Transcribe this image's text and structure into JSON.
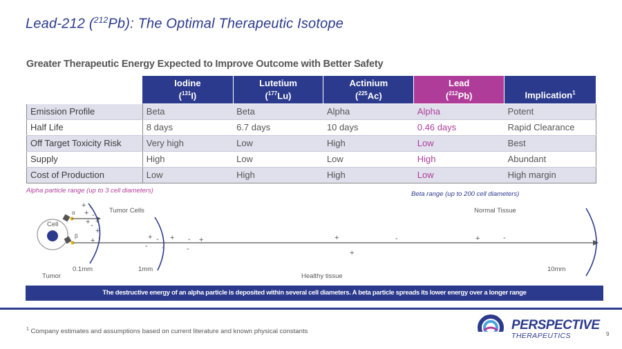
{
  "title": {
    "prefix": "Lead-212 (",
    "sup": "212",
    "suffix": "Pb): The Optimal Therapeutic Isotope"
  },
  "subtitle": "Greater Therapeutic Energy Expected to Improve Outcome with Better Safety",
  "table": {
    "headers": [
      {
        "name": "Iodine",
        "sym_pre": "(",
        "sup": "131",
        "sym": "I)"
      },
      {
        "name": "Lutetium",
        "sym_pre": "(",
        "sup": "177",
        "sym": "Lu)"
      },
      {
        "name": "Actinium",
        "sym_pre": "(",
        "sup": "225",
        "sym": "Ac)"
      },
      {
        "name": "Lead",
        "sym_pre": "(",
        "sup": "212",
        "sym": "Pb)"
      },
      {
        "name": "Implication",
        "sup": "1"
      }
    ],
    "rows": [
      {
        "label": "Emission Profile",
        "cells": [
          "Beta",
          "Beta",
          "Alpha",
          "Alpha",
          "Potent"
        ]
      },
      {
        "label": "Half Life",
        "cells": [
          "8 days",
          "6.7 days",
          "10 days",
          "0.46 days",
          "Rapid Clearance"
        ]
      },
      {
        "label": "Off Target Toxicity Risk",
        "cells": [
          "Very high",
          "Low",
          "High",
          "Low",
          "Best"
        ]
      },
      {
        "label": "Supply",
        "cells": [
          "High",
          "Low",
          "Low",
          "High",
          "Abundant"
        ]
      },
      {
        "label": "Cost of Production",
        "cells": [
          "Low",
          "High",
          "High",
          "Low",
          "High margin"
        ]
      }
    ]
  },
  "diagram": {
    "alpha_range": "Alpha particle range (up to 3 cell diameters)",
    "beta_range": "Beta range (up to 200 cell diameters)",
    "tumor_cells": "Tumor Cells",
    "normal_tissue": "Normal Tissue",
    "cell": "Cell",
    "alpha_sym": "α",
    "beta_sym": "β",
    "scale_01": "0.1mm",
    "scale_1": "1mm",
    "scale_10": "10mm",
    "tumor": "Tumor",
    "healthy": "Healthy tissue"
  },
  "banner": "The destructive energy of an alpha particle is deposited within several cell diameters. A beta particle spreads its lower energy over a longer range",
  "footnote": {
    "sup": "1",
    "text": "Company estimates and assumptions based on current literature and known physical constants"
  },
  "page_number": "9",
  "logo": {
    "line1": "PERSPECTIVE",
    "line2": "THERAPEUTICS"
  },
  "colors": {
    "navy": "#2b3a8c",
    "magenta": "#b03c9a",
    "shade": "#dfe0ec"
  }
}
